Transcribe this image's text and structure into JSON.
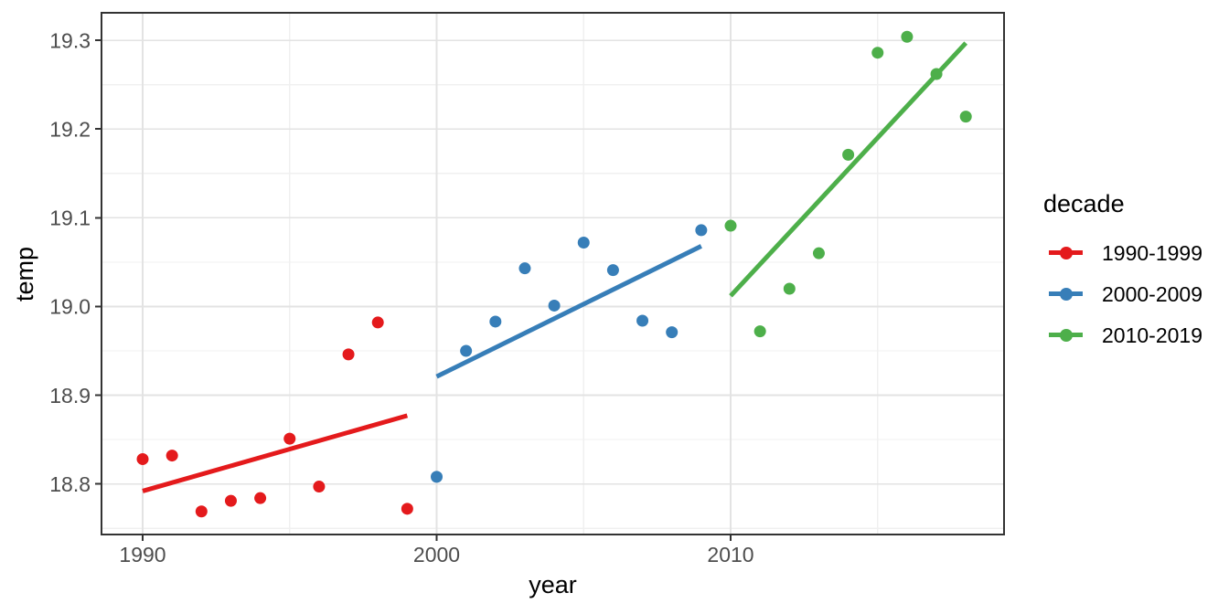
{
  "figure": {
    "background": "#ffffff",
    "panel_background": "#ffffff",
    "panel_border_color": "#333333",
    "grid_major_color": "#e3e3e3",
    "grid_minor_color": "#f0f0f0",
    "tick_color": "#333333",
    "tick_label_color": "#4d4d4d"
  },
  "chart_data": {
    "type": "scatter",
    "title": "",
    "xlabel": "year",
    "ylabel": "temp",
    "legend_title": "decade",
    "legend_position": "right",
    "grid": true,
    "xlim": [
      1988.6,
      2019.3
    ],
    "ylim": [
      18.743,
      19.331
    ],
    "x_ticks": {
      "values": [
        1990,
        2000,
        2010
      ],
      "labels": [
        "1990",
        "2000",
        "2010"
      ],
      "minor": [
        1995,
        2005,
        2015
      ]
    },
    "y_ticks": {
      "values": [
        18.8,
        18.9,
        19.0,
        19.1,
        19.2,
        19.3
      ],
      "labels": [
        "18.8",
        "18.9",
        "19.0",
        "19.1",
        "19.2",
        "19.3"
      ],
      "minor": [
        18.75,
        18.85,
        18.95,
        19.05,
        19.15,
        19.25
      ]
    },
    "series": [
      {
        "name": "1990-1999",
        "color": "#E41A1C",
        "x": [
          1990,
          1991,
          1992,
          1993,
          1994,
          1995,
          1996,
          1997,
          1998,
          1999
        ],
        "y": [
          18.828,
          18.832,
          18.769,
          18.781,
          18.784,
          18.851,
          18.797,
          18.946,
          18.982,
          18.772
        ],
        "trend_line": {
          "x": [
            1990,
            1999
          ],
          "y": [
            18.792,
            18.877
          ]
        }
      },
      {
        "name": "2000-2009",
        "color": "#377EB8",
        "x": [
          2000,
          2001,
          2002,
          2003,
          2004,
          2005,
          2006,
          2007,
          2008,
          2009
        ],
        "y": [
          18.808,
          18.95,
          18.983,
          19.043,
          19.001,
          19.072,
          19.041,
          18.984,
          18.971,
          19.086
        ],
        "trend_line": {
          "x": [
            2000,
            2009
          ],
          "y": [
            18.921,
            19.068
          ]
        }
      },
      {
        "name": "2010-2019",
        "color": "#4DAF4A",
        "x": [
          2010,
          2011,
          2012,
          2013,
          2014,
          2015,
          2016,
          2017,
          2018
        ],
        "y": [
          19.091,
          18.972,
          19.02,
          19.06,
          19.171,
          19.286,
          19.304,
          19.262,
          19.214
        ],
        "trend_line": {
          "x": [
            2010,
            2018
          ],
          "y": [
            19.012,
            19.297
          ]
        }
      }
    ]
  }
}
